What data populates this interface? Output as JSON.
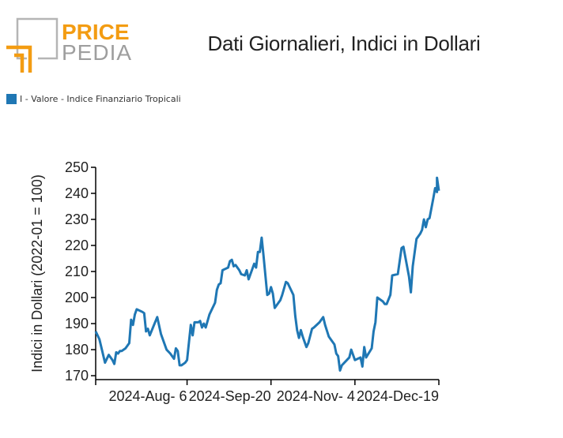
{
  "logo": {
    "line1": "PRICE",
    "line2": "PEDIA",
    "accent": "#f39c12",
    "gray": "#9e9e9e"
  },
  "chart_data": {
    "type": "line",
    "title": "Dati Giornalieri, Indici in Dollari",
    "ylabel": "Indici in Dollari (2022-01 = 100)",
    "xlabel": "",
    "ylim": [
      168.5,
      250
    ],
    "yticks": [
      170,
      180,
      190,
      200,
      210,
      220,
      230,
      240,
      250
    ],
    "x_range": [
      "2024-06-18",
      "2024-12-19"
    ],
    "xtick_labels": [
      "2024-Aug- 6",
      "2024-Sep-20",
      "2024-Nov- 4",
      "2024-Dec-19"
    ],
    "xtick_dates": [
      "2024-08-06",
      "2024-09-20",
      "2024-11-04",
      "2024-12-19"
    ],
    "legend_position": "top-left",
    "color": "#1f77b4",
    "series": [
      {
        "name": "I - Valore - Indice Finanziario Tropicali",
        "points": [
          [
            "2024-06-18",
            187
          ],
          [
            "2024-06-20",
            184
          ],
          [
            "2024-06-21",
            181
          ],
          [
            "2024-06-22",
            178
          ],
          [
            "2024-06-23",
            175
          ],
          [
            "2024-06-25",
            178
          ],
          [
            "2024-06-27",
            176
          ],
          [
            "2024-06-28",
            174.5
          ],
          [
            "2024-06-29",
            179
          ],
          [
            "2024-06-30",
            178.5
          ],
          [
            "2024-07-01",
            179.5
          ],
          [
            "2024-07-02",
            179.5
          ],
          [
            "2024-07-04",
            180.5
          ],
          [
            "2024-07-06",
            182.5
          ],
          [
            "2024-07-07",
            191.5
          ],
          [
            "2024-07-08",
            189.5
          ],
          [
            "2024-07-09",
            193.5
          ],
          [
            "2024-07-10",
            195.5
          ],
          [
            "2024-07-13",
            194.5
          ],
          [
            "2024-07-14",
            194
          ],
          [
            "2024-07-15",
            187
          ],
          [
            "2024-07-16",
            188
          ],
          [
            "2024-07-17",
            185.5
          ],
          [
            "2024-07-19",
            189
          ],
          [
            "2024-07-21",
            192.5
          ],
          [
            "2024-07-23",
            186
          ],
          [
            "2024-07-26",
            180
          ],
          [
            "2024-07-28",
            178.5
          ],
          [
            "2024-07-30",
            176.5
          ],
          [
            "2024-07-31",
            180.5
          ],
          [
            "2024-08-01",
            179.5
          ],
          [
            "2024-08-02",
            174
          ],
          [
            "2024-08-03",
            174
          ],
          [
            "2024-08-05",
            175
          ],
          [
            "2024-08-06",
            176
          ],
          [
            "2024-08-08",
            189.5
          ],
          [
            "2024-08-09",
            185.5
          ],
          [
            "2024-08-10",
            190.5
          ],
          [
            "2024-08-12",
            190.5
          ],
          [
            "2024-08-13",
            191
          ],
          [
            "2024-08-14",
            188.5
          ],
          [
            "2024-08-15",
            190
          ],
          [
            "2024-08-16",
            188.5
          ],
          [
            "2024-08-18",
            193.5
          ],
          [
            "2024-08-19",
            195
          ],
          [
            "2024-08-21",
            198
          ],
          [
            "2024-08-22",
            203
          ],
          [
            "2024-08-23",
            205
          ],
          [
            "2024-08-24",
            205.5
          ],
          [
            "2024-08-25",
            210.5
          ],
          [
            "2024-08-28",
            211.5
          ],
          [
            "2024-08-29",
            214
          ],
          [
            "2024-08-30",
            214.5
          ],
          [
            "2024-08-31",
            212
          ],
          [
            "2024-09-01",
            212.5
          ],
          [
            "2024-09-03",
            210.5
          ],
          [
            "2024-09-04",
            209
          ],
          [
            "2024-09-06",
            208.5
          ],
          [
            "2024-09-07",
            210.5
          ],
          [
            "2024-09-08",
            207
          ],
          [
            "2024-09-10",
            211
          ],
          [
            "2024-09-11",
            213
          ],
          [
            "2024-09-12",
            211.5
          ],
          [
            "2024-09-13",
            217.5
          ],
          [
            "2024-09-14",
            217.5
          ],
          [
            "2024-09-15",
            223
          ],
          [
            "2024-09-16",
            216
          ],
          [
            "2024-09-18",
            201
          ],
          [
            "2024-09-19",
            201.5
          ],
          [
            "2024-09-20",
            204
          ],
          [
            "2024-09-21",
            201.5
          ],
          [
            "2024-09-22",
            196
          ],
          [
            "2024-09-24",
            198
          ],
          [
            "2024-09-25",
            199
          ],
          [
            "2024-09-26",
            201
          ],
          [
            "2024-09-28",
            206
          ],
          [
            "2024-09-29",
            205.5
          ],
          [
            "2024-10-02",
            201
          ],
          [
            "2024-10-03",
            193
          ],
          [
            "2024-10-04",
            187.5
          ],
          [
            "2024-10-05",
            184.5
          ],
          [
            "2024-10-06",
            187.5
          ],
          [
            "2024-10-07",
            185
          ],
          [
            "2024-10-09",
            181
          ],
          [
            "2024-10-10",
            182.5
          ],
          [
            "2024-10-12",
            188
          ],
          [
            "2024-10-13",
            188.5
          ],
          [
            "2024-10-16",
            190.5
          ],
          [
            "2024-10-18",
            192.5
          ],
          [
            "2024-10-19",
            189.5
          ],
          [
            "2024-10-21",
            185
          ],
          [
            "2024-10-22",
            184
          ],
          [
            "2024-10-24",
            182
          ],
          [
            "2024-10-25",
            178.5
          ],
          [
            "2024-10-26",
            177.5
          ],
          [
            "2024-10-27",
            172
          ],
          [
            "2024-10-28",
            174
          ],
          [
            "2024-11-01",
            177
          ],
          [
            "2024-11-02",
            180
          ],
          [
            "2024-11-04",
            176
          ],
          [
            "2024-11-07",
            177
          ],
          [
            "2024-11-08",
            173.5
          ],
          [
            "2024-11-09",
            181
          ],
          [
            "2024-11-10",
            177
          ],
          [
            "2024-11-13",
            180.5
          ],
          [
            "2024-11-14",
            187
          ],
          [
            "2024-11-15",
            190.5
          ],
          [
            "2024-11-16",
            200
          ],
          [
            "2024-11-19",
            198.5
          ],
          [
            "2024-11-20",
            197.5
          ],
          [
            "2024-11-21",
            197.5
          ],
          [
            "2024-11-23",
            201
          ],
          [
            "2024-11-24",
            208.5
          ],
          [
            "2024-11-27",
            209
          ],
          [
            "2024-11-29",
            219
          ],
          [
            "2024-11-30",
            219.5
          ],
          [
            "2024-12-03",
            208
          ],
          [
            "2024-12-04",
            202
          ],
          [
            "2024-12-05",
            212
          ],
          [
            "2024-12-07",
            222.5
          ],
          [
            "2024-12-09",
            224.5
          ],
          [
            "2024-12-10",
            226
          ],
          [
            "2024-12-11",
            230
          ],
          [
            "2024-12-12",
            227
          ],
          [
            "2024-12-13",
            230
          ],
          [
            "2024-12-14",
            230.5
          ],
          [
            "2024-12-16",
            238
          ],
          [
            "2024-12-17",
            242
          ],
          [
            "2024-12-18",
            240.5
          ],
          [
            "2024-12-18",
            246
          ],
          [
            "2024-12-19",
            241
          ]
        ]
      }
    ]
  }
}
